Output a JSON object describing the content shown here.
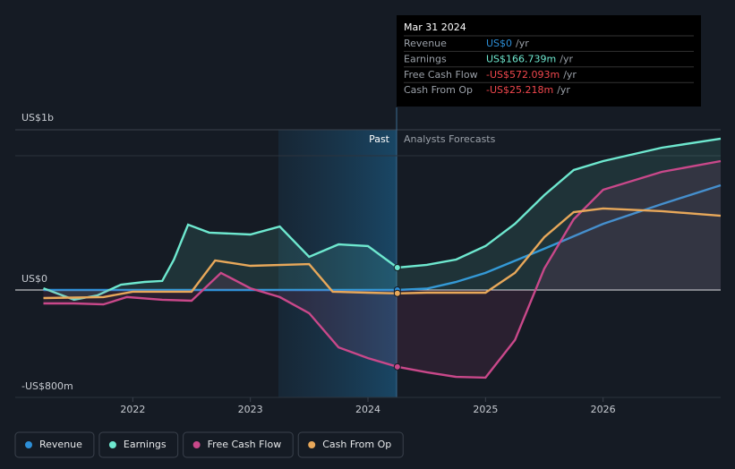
{
  "chart_data": {
    "type": "line",
    "xlim": [
      2021,
      2027
    ],
    "xticks": [
      2022,
      2023,
      2024,
      2025,
      2026
    ],
    "ylim": [
      -800,
      1200
    ],
    "yticks": [
      {
        "value": 1000,
        "label": "US$1b"
      },
      {
        "value": 0,
        "label": "US$0"
      },
      {
        "value": -800,
        "label": "-US$800m"
      }
    ],
    "past_label": "Past",
    "forecast_label": "Analysts Forecasts",
    "series": [
      {
        "name": "Revenue",
        "color": "#2d8fd8",
        "x": [
          2021.24,
          2022,
          2023,
          2024,
          2024.25,
          2024.5,
          2024.75,
          2025,
          2025.5,
          2026,
          2026.5,
          2027
        ],
        "values": [
          0,
          0,
          0,
          0,
          0,
          10,
          60,
          127,
          307,
          493,
          640,
          780
        ]
      },
      {
        "name": "Earnings",
        "color": "#6ee8cf",
        "x": [
          2021.24,
          2021.5,
          2021.7,
          2021.9,
          2022.1,
          2022.25,
          2022.35,
          2022.47,
          2022.65,
          2023,
          2023.25,
          2023.5,
          2023.75,
          2024,
          2024.25,
          2024.5,
          2024.75,
          2025,
          2025.25,
          2025.5,
          2025.75,
          2026,
          2026.5,
          2027
        ],
        "values": [
          13,
          -73,
          -40,
          40,
          60,
          67,
          227,
          487,
          427,
          413,
          473,
          247,
          340,
          327,
          166.739,
          187,
          227,
          327,
          493,
          707,
          893,
          960,
          1060,
          1127
        ]
      },
      {
        "name": "Free Cash Flow",
        "color": "#c9488a",
        "x": [
          2021.24,
          2021.5,
          2021.75,
          2021.95,
          2022.25,
          2022.5,
          2022.75,
          2023,
          2023.25,
          2023.5,
          2023.75,
          2024,
          2024.25,
          2024.5,
          2024.75,
          2025,
          2025.25,
          2025.5,
          2025.75,
          2026,
          2026.5,
          2027
        ],
        "values": [
          -100,
          -100,
          -107,
          -53,
          -73,
          -80,
          127,
          13,
          -53,
          -173,
          -427,
          -507,
          -572.093,
          -613,
          -647,
          -653,
          -373,
          160,
          527,
          747,
          880,
          960
        ]
      },
      {
        "name": "Cash From Op",
        "color": "#e8a85a",
        "x": [
          2021.24,
          2021.75,
          2022,
          2022.5,
          2022.7,
          2023,
          2023.5,
          2023.7,
          2024,
          2024.25,
          2024.5,
          2025,
          2025.25,
          2025.5,
          2025.75,
          2026,
          2026.5,
          2027
        ],
        "values": [
          -60,
          -53,
          -13,
          -13,
          220,
          180,
          193,
          -13,
          -20,
          -25.218,
          -20,
          -20,
          127,
          393,
          580,
          607,
          587,
          553
        ]
      }
    ],
    "tooltip": {
      "date": "Mar 31 2024",
      "rows": [
        {
          "label": "Revenue",
          "value": "US$0",
          "unit": "/yr",
          "color": "#2d8fd8"
        },
        {
          "label": "Earnings",
          "value": "US$166.739m",
          "unit": "/yr",
          "color": "#6ee8cf"
        },
        {
          "label": "Free Cash Flow",
          "value": "-US$572.093m",
          "unit": "/yr",
          "color": "#f0474d"
        },
        {
          "label": "Cash From Op",
          "value": "-US$25.218m",
          "unit": "/yr",
          "color": "#f0474d"
        }
      ]
    }
  }
}
